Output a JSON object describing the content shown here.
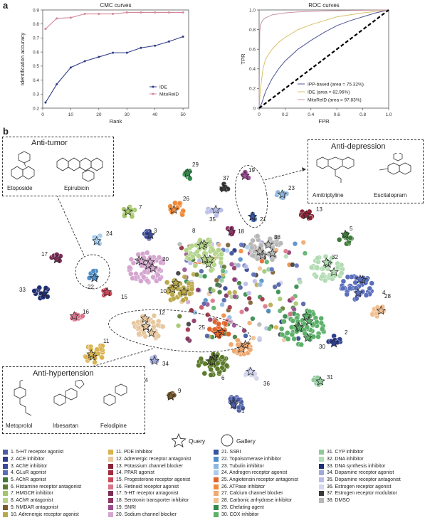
{
  "panel_a_label": "a",
  "panel_b_label": "b",
  "chart_data": [
    {
      "type": "line",
      "title": "CMC curves",
      "xlabel": "Rank",
      "ylabel": "Identification accuracy",
      "xlim": [
        0,
        52
      ],
      "ylim": [
        0.2,
        0.9
      ],
      "xticks": [
        "0",
        "10",
        "20",
        "30",
        "40",
        "50"
      ],
      "yticks": [
        "0.2",
        "0.3",
        "0.4",
        "0.5",
        "0.6",
        "0.7",
        "0.8",
        "0.9"
      ],
      "legend_position": "lower-right",
      "series": [
        {
          "name": "IDE",
          "color": "#2e3b87",
          "x": [
            1,
            5,
            10,
            15,
            20,
            25,
            30,
            35,
            40,
            45,
            50
          ],
          "y": [
            0.24,
            0.37,
            0.49,
            0.535,
            0.565,
            0.595,
            0.595,
            0.63,
            0.645,
            0.675,
            0.71
          ]
        },
        {
          "name": "MitoReID",
          "color": "#d4869a",
          "x": [
            1,
            5,
            10,
            15,
            20,
            25,
            30,
            35,
            40,
            45,
            50
          ],
          "y": [
            0.765,
            0.84,
            0.845,
            0.872,
            0.872,
            0.872,
            0.882,
            0.882,
            0.882,
            0.882,
            0.882
          ]
        }
      ]
    },
    {
      "type": "line",
      "title": "ROC curves",
      "xlabel": "FPR",
      "ylabel": "TPR",
      "xlim": [
        0,
        1
      ],
      "ylim": [
        0,
        1
      ],
      "xticks": [
        "0",
        "0.2",
        "0.4",
        "0.6",
        "0.8",
        "1.0"
      ],
      "yticks": [
        "0",
        "0.2",
        "0.4",
        "0.6",
        "0.8",
        "1.0"
      ],
      "legend_position": "lower-right",
      "series": [
        {
          "name": "IPP-based (area = 75.32%)",
          "color": "#4e5596",
          "x": [
            0,
            0.02,
            0.05,
            0.1,
            0.15,
            0.2,
            0.3,
            0.4,
            0.5,
            0.6,
            0.7,
            0.8,
            0.9,
            1.0
          ],
          "y": [
            0,
            0.05,
            0.17,
            0.3,
            0.4,
            0.48,
            0.6,
            0.69,
            0.77,
            0.84,
            0.89,
            0.93,
            0.97,
            1.0
          ]
        },
        {
          "name": "IDE (area = 82.96%)",
          "color": "#d9c06a",
          "x": [
            0,
            0.01,
            0.03,
            0.05,
            0.1,
            0.15,
            0.2,
            0.3,
            0.4,
            0.5,
            0.6,
            0.7,
            0.8,
            1.0
          ],
          "y": [
            0,
            0.2,
            0.4,
            0.5,
            0.6,
            0.67,
            0.72,
            0.8,
            0.85,
            0.89,
            0.93,
            0.95,
            0.97,
            1.0
          ]
        },
        {
          "name": "MitoReID (area = 97.83%)",
          "color": "#c993a3",
          "x": [
            0,
            0.005,
            0.01,
            0.03,
            0.05,
            0.1,
            0.2,
            0.3,
            0.5,
            0.7,
            1.0
          ],
          "y": [
            0,
            0.78,
            0.85,
            0.9,
            0.92,
            0.95,
            0.97,
            0.98,
            0.99,
            0.995,
            1.0
          ]
        },
        {
          "name": "",
          "color": "#000000",
          "dashed": true,
          "x": [
            0,
            1
          ],
          "y": [
            0,
            1
          ]
        }
      ]
    },
    {
      "type": "scatter",
      "title": "",
      "clusters": [
        {
          "id": 1,
          "x": 331,
          "y": 568,
          "n": 18,
          "r": 11,
          "color": "#4d5ea6"
        },
        {
          "id": 2,
          "x": 470,
          "y": 479,
          "n": 10,
          "r": 7,
          "color": "#2e3f8f"
        },
        {
          "id": 3,
          "x": 209,
          "y": 330,
          "n": 8,
          "r": 7,
          "color": "#3a4a9a"
        },
        {
          "id": 4,
          "x": 502,
          "y": 403,
          "n": 40,
          "r": 18,
          "color": "#5a6ebd"
        },
        {
          "id": 5,
          "x": 486,
          "y": 335,
          "n": 14,
          "r": 8,
          "color": "#3f7a3a"
        },
        {
          "id": 6,
          "x": 299,
          "y": 512,
          "n": 40,
          "r": 17,
          "color": "#5c7a2b"
        },
        {
          "id": 7,
          "x": 181,
          "y": 298,
          "n": 12,
          "r": 8,
          "color": "#a3c66b"
        },
        {
          "id": 8,
          "x": 288,
          "y": 359,
          "n": 55,
          "r": 23,
          "color": "#b5d48a"
        },
        {
          "id": 9,
          "x": 240,
          "y": 555,
          "n": 5,
          "r": 4,
          "color": "#7a5b2c"
        },
        {
          "id": 10,
          "x": 249,
          "y": 406,
          "n": 38,
          "r": 18,
          "color": "#b9a84a"
        },
        {
          "id": 11,
          "x": 134,
          "y": 496,
          "n": 28,
          "r": 14,
          "color": "#d9b34f"
        },
        {
          "id": 12,
          "x": 207,
          "y": 460,
          "n": 42,
          "r": 18,
          "color": "#e7c79e"
        },
        {
          "id": 13,
          "x": 431,
          "y": 302,
          "n": 10,
          "r": 7,
          "color": "#8a2336"
        },
        {
          "id": 14,
          "x": 186,
          "y": 537,
          "n": 5,
          "r": 4,
          "color": "#a32d40"
        },
        {
          "id": 15,
          "x": 148,
          "y": 411,
          "n": 8,
          "r": 6,
          "color": "#c94a5a"
        },
        {
          "id": 16,
          "x": 108,
          "y": 447,
          "n": 10,
          "r": 7,
          "color": "#d9748a"
        },
        {
          "id": 17,
          "x": 79,
          "y": 363,
          "n": 8,
          "r": 6,
          "color": "#7b2d56"
        },
        {
          "id": 18,
          "x": 323,
          "y": 325,
          "n": 6,
          "r": 5,
          "color": "#8e3566"
        },
        {
          "id": 19,
          "x": 345,
          "y": 247,
          "n": 6,
          "r": 5,
          "color": "#9a4e91"
        },
        {
          "id": 20,
          "x": 206,
          "y": 377,
          "n": 55,
          "r": 22,
          "color": "#d4a6cf"
        },
        {
          "id": 21,
          "x": 356,
          "y": 304,
          "n": 6,
          "r": 5,
          "color": "#35549e"
        },
        {
          "id": 22,
          "x": 131,
          "y": 387,
          "n": 8,
          "r": 7,
          "color": "#4f8fc9"
        },
        {
          "id": 23,
          "x": 396,
          "y": 274,
          "n": 8,
          "r": 6,
          "color": "#8fb8e0"
        },
        {
          "id": 24,
          "x": 138,
          "y": 337,
          "n": 8,
          "r": 7,
          "color": "#aacdef"
        },
        {
          "id": 25,
          "x": 309,
          "y": 463,
          "n": 20,
          "r": 12,
          "color": "#e0632b"
        },
        {
          "id": 26,
          "x": 249,
          "y": 294,
          "n": 14,
          "r": 10,
          "color": "#ef8a3a"
        },
        {
          "id": 27,
          "x": 336,
          "y": 487,
          "n": 26,
          "r": 14,
          "color": "#f0a970"
        },
        {
          "id": 28,
          "x": 530,
          "y": 437,
          "n": 14,
          "r": 9,
          "color": "#f2bf90"
        },
        {
          "id": 29,
          "x": 264,
          "y": 246,
          "n": 8,
          "r": 6,
          "color": "#2f8a4a"
        },
        {
          "id": 30,
          "x": 425,
          "y": 461,
          "n": 60,
          "r": 25,
          "color": "#5cb06a"
        },
        {
          "id": 31,
          "x": 447,
          "y": 536,
          "n": 8,
          "r": 6,
          "color": "#8fc99a"
        },
        {
          "id": 32,
          "x": 460,
          "y": 377,
          "n": 40,
          "r": 18,
          "color": "#b2dcb4"
        },
        {
          "id": 33,
          "x": 59,
          "y": 411,
          "n": 14,
          "r": 9,
          "color": "#1f2f73"
        },
        {
          "id": 34,
          "x": 217,
          "y": 504,
          "n": 6,
          "r": 5,
          "color": "#9fa9d9"
        },
        {
          "id": 35,
          "x": 301,
          "y": 298,
          "n": 10,
          "r": 8,
          "color": "#b9bde9"
        },
        {
          "id": 36,
          "x": 353,
          "y": 527,
          "n": 10,
          "r": 8,
          "color": "#d3d6ee"
        },
        {
          "id": 37,
          "x": 315,
          "y": 263,
          "n": 6,
          "r": 5,
          "color": "#3a3a3a"
        },
        {
          "id": 38,
          "x": 373,
          "y": 348,
          "n": 45,
          "r": 19,
          "color": "#b7b7b7"
        }
      ],
      "label_positions": [
        [
          339,
          580
        ],
        [
          484,
          470
        ],
        [
          216,
          327
        ],
        [
          537,
          414
        ],
        [
          491,
          324
        ],
        [
          311,
          534
        ],
        [
          195,
          294
        ],
        [
          270,
          327
        ],
        [
          250,
          552
        ],
        [
          225,
          412
        ],
        [
          145,
          482
        ],
        [
          223,
          442
        ],
        [
          444,
          297
        ],
        [
          199,
          537
        ],
        [
          170,
          420
        ],
        [
          116,
          441
        ],
        [
          58,
          360
        ],
        [
          334,
          328
        ],
        [
          349,
          242
        ],
        [
          228,
          367
        ],
        [
          365,
          311
        ],
        [
          123,
          406
        ],
        [
          405,
          267
        ],
        [
          149,
          331
        ],
        [
          279,
          463
        ],
        [
          257,
          282
        ],
        [
          298,
          505
        ],
        [
          540,
          419
        ],
        [
          270,
          234
        ],
        [
          448,
          490
        ],
        [
          459,
          533
        ],
        [
          466,
          364
        ],
        [
          27,
          410
        ],
        [
          228,
          514
        ],
        [
          294,
          311
        ],
        [
          370,
          542
        ],
        [
          313,
          253
        ],
        [
          385,
          336
        ]
      ],
      "marker_legend": [
        "Query",
        "Gallery"
      ]
    }
  ],
  "legend_categories": [
    "1. 5-HT receptor agonist",
    "2. ACE inhibitor",
    "3. AChE inhibitor",
    "4. GLuR agonist",
    "5. AChR agonist",
    "6. Histamine receptor antagonist",
    "7. HMGCR inhibitor",
    "8. AChR antagonist",
    "9. NMDAR antagonist",
    "10. Adrenergic receptor agonist",
    "11. PDE inhibitor",
    "12. Adrenergic receptor antagonist",
    "13. Potassium channel blocker",
    "14. PPAR agonist",
    "15. Progesterone receptor agonist",
    "16. Retinoid receptor agonist",
    "17. 5-HT receptor antagonist",
    "18. Serotonin transporter inhibitor",
    "19. SNRI",
    "20. Sodium channel blocker",
    "21. SSRI",
    "22. Topoisomerase inhibitor",
    "23. Tubulin inhibitor",
    "24. Androgen receptor agonist",
    "25. Angiotensin receptor antagonist",
    "26. ATPase inhibitor",
    "27. Calcium channel blocker",
    "28. Carbonic anhydrase inhibitor",
    "29. Chelating agent",
    "30. COX inhibitor",
    "31. CYP inhibitor",
    "32. DNA inhibitor",
    "33. DNA synthesis inhibitor",
    "34. Dopamine receptor agonist",
    "35. Dopamine receptor antagonist",
    "36. Estrogen receptor agonist",
    "37. Estrogen receptor modulator",
    "38. DMSO"
  ],
  "callouts": {
    "anti_tumor": {
      "title": "Anti-tumor",
      "drugs": [
        "Etoposide",
        "Epirubicin"
      ]
    },
    "anti_depression": {
      "title": "Anti-depression",
      "drugs": [
        "Amitriptyline",
        "Escitalopram"
      ]
    },
    "anti_hypertension": {
      "title": "Anti-hypertension",
      "drugs": [
        "Metoprolol",
        "Irbesartan",
        "Felodipine"
      ]
    }
  }
}
